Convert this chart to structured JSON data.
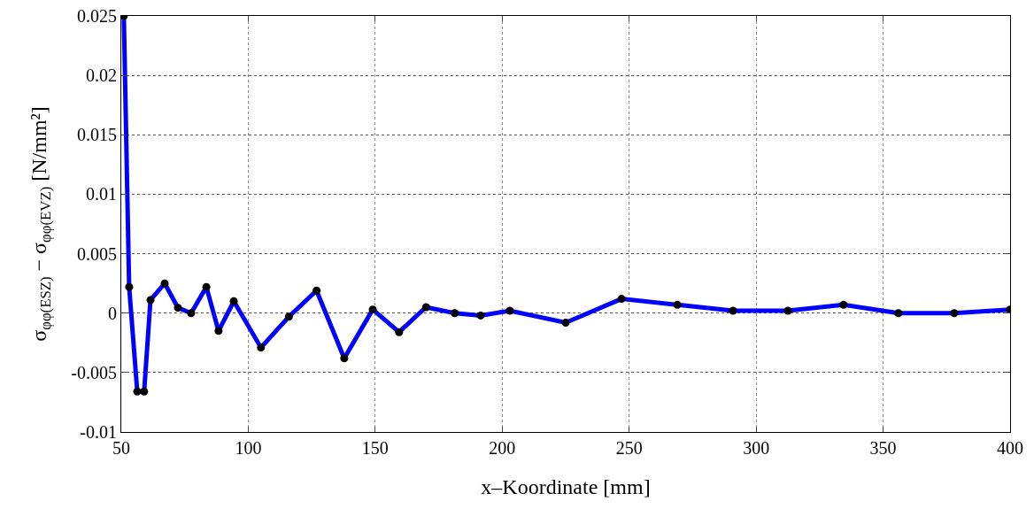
{
  "chart_data": {
    "type": "line",
    "xlabel": "x–Koordinate [mm]",
    "ylabel": "σ$_{φφ(ESZ)}$ − σ$_{φφ(EVZ)}$ [N/mm²]",
    "x": [
      51,
      53.1,
      56.3,
      59,
      61.5,
      67.1,
      72.3,
      77.5,
      83.5,
      88.3,
      94.3,
      105,
      116,
      126.9,
      137.8,
      149,
      159.4,
      170,
      181.3,
      191.5,
      203,
      225,
      247,
      269,
      290.9,
      312.5,
      334.4,
      356,
      378,
      400
    ],
    "series": [
      {
        "color": "#0000ff",
        "values": [
          0.025,
          0.0022,
          -0.0066,
          -0.0066,
          0.0011,
          0.0025,
          0.00045,
          0,
          0.0022,
          -0.0015,
          0.001,
          -0.0029,
          -0.0003,
          0.0019,
          -0.0038,
          0.0003,
          -0.0016,
          0.0005,
          0,
          -0.0002,
          0.0002,
          -0.0008,
          0.0012,
          0.0007,
          0.0002,
          0.0002,
          0.0007,
          0,
          0,
          0.0003
        ]
      }
    ],
    "xlim": [
      50,
      400
    ],
    "xticks": [
      50,
      100,
      150,
      200,
      250,
      300,
      350,
      400
    ],
    "ylim": [
      -0.01,
      0.025
    ],
    "yticks": [
      -0.01,
      -0.005,
      0,
      0.005,
      0.01,
      0.015,
      0.02,
      0.025
    ],
    "grid": true,
    "marker": "circle",
    "line_style": "solid"
  }
}
